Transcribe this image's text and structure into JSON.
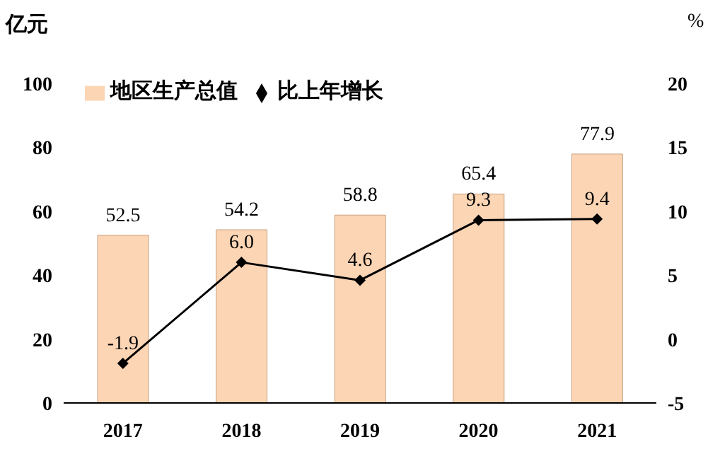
{
  "chart_data": {
    "type": "bar",
    "ylabel": "亿元",
    "y2label": "%",
    "categories": [
      "2017",
      "2018",
      "2019",
      "2020",
      "2021"
    ],
    "series": [
      {
        "name": "地区生产总值",
        "color": "#fcd5b5",
        "values": [
          52.5,
          54.2,
          58.8,
          65.4,
          77.9
        ],
        "value_labels": [
          "52.5",
          "54.2",
          "58.8",
          "65.4",
          "77.9"
        ]
      },
      {
        "name": "比上年增长",
        "type": "line",
        "axis": "y2",
        "color": "#000000",
        "values": [
          -1.9,
          6.0,
          4.6,
          9.3,
          9.4
        ],
        "value_labels": [
          "-1.9",
          "6.0",
          "4.6",
          "9.3",
          "9.4"
        ]
      }
    ],
    "ylim": [
      0,
      100
    ],
    "yticks": [
      0,
      20,
      40,
      60,
      80,
      100
    ],
    "y2lim": [
      -5,
      20
    ],
    "y2ticks": [
      -5,
      0,
      5,
      10,
      15,
      20
    ],
    "grid": false,
    "legend": "top left",
    "marker": "diamond",
    "line_style": "solid"
  }
}
